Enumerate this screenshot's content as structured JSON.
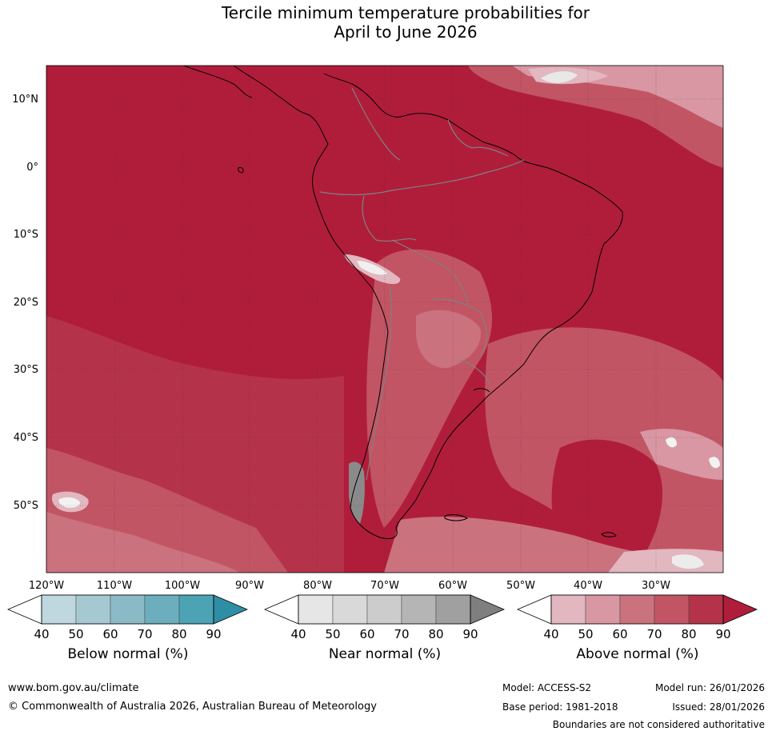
{
  "title": {
    "line1": "Tercile minimum temperature probabilities for",
    "line2": "April to June 2026"
  },
  "axes": {
    "latitudes": [
      "10°N",
      "0°",
      "10°S",
      "20°S",
      "30°S",
      "40°S",
      "50°S"
    ],
    "longitudes": [
      "120°W",
      "110°W",
      "100°W",
      "90°W",
      "80°W",
      "70°W",
      "60°W",
      "50°W",
      "40°W",
      "30°W"
    ]
  },
  "colorbars": [
    {
      "label": "Below normal (%)",
      "ticks": [
        "40",
        "50",
        "60",
        "70",
        "80",
        "90"
      ],
      "colors": [
        "#ffffff",
        "#bfd7de",
        "#a6c9d1",
        "#8bbac6",
        "#6caebe",
        "#4ba3b4",
        "#2e8ea5"
      ]
    },
    {
      "label": "Near normal (%)",
      "ticks": [
        "40",
        "50",
        "60",
        "70",
        "80",
        "90"
      ],
      "colors": [
        "#ffffff",
        "#e6e6e6",
        "#d9d9d9",
        "#cccccc",
        "#b5b5b5",
        "#a0a0a0",
        "#7f7f7f"
      ]
    },
    {
      "label": "Above normal (%)",
      "ticks": [
        "40",
        "50",
        "60",
        "70",
        "80",
        "90"
      ],
      "colors": [
        "#ffffff",
        "#e2b7bf",
        "#d897a2",
        "#cb727f",
        "#c25564",
        "#b5334a",
        "#b01d3b"
      ]
    }
  ],
  "footer": {
    "website": "www.bom.gov.au/climate",
    "copyright": "© Commonwealth of Australia 2026, Australian Bureau of Meteorology",
    "model": "Model: ACCESS-S2",
    "base_period": "Base period: 1981-2018",
    "model_run": "Model run: 26/01/2026",
    "issued": "Issued: 28/01/2026",
    "disclaimer": "Boundaries are not considered authoritative"
  }
}
